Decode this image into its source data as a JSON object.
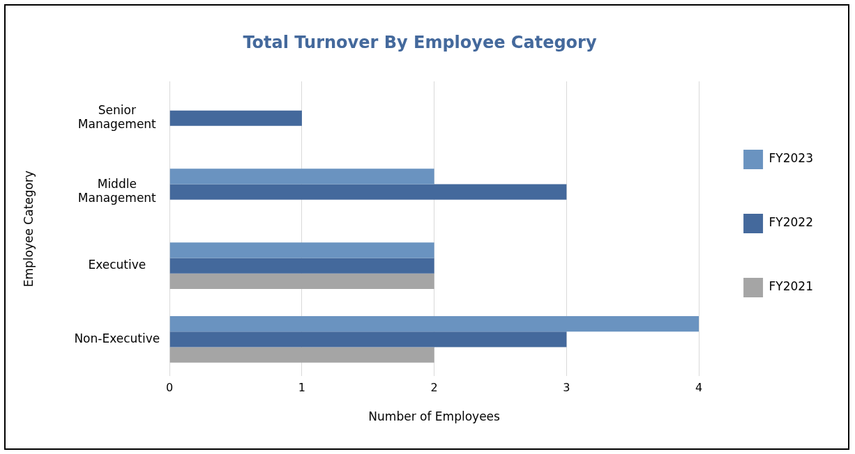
{
  "chart_data": {
    "type": "bar",
    "orientation": "horizontal",
    "title": "Total Turnover By Employee Category",
    "xlabel": "Number of Employees",
    "ylabel": "Employee Category",
    "categories": [
      "Senior Management",
      "Middle Management",
      "Executive",
      "Non-Executive"
    ],
    "series": [
      {
        "name": "FY2023",
        "color": "#6a93c0",
        "values": [
          null,
          2,
          2,
          4
        ]
      },
      {
        "name": "FY2022",
        "color": "#44699c",
        "values": [
          1,
          3,
          2,
          3
        ]
      },
      {
        "name": "FY2021",
        "color": "#a5a5a5",
        "values": [
          null,
          null,
          2,
          2
        ]
      }
    ],
    "xlim": [
      0,
      4
    ],
    "xticks": [
      0,
      1,
      2,
      3,
      4
    ],
    "grid": "x",
    "legend": "right"
  }
}
